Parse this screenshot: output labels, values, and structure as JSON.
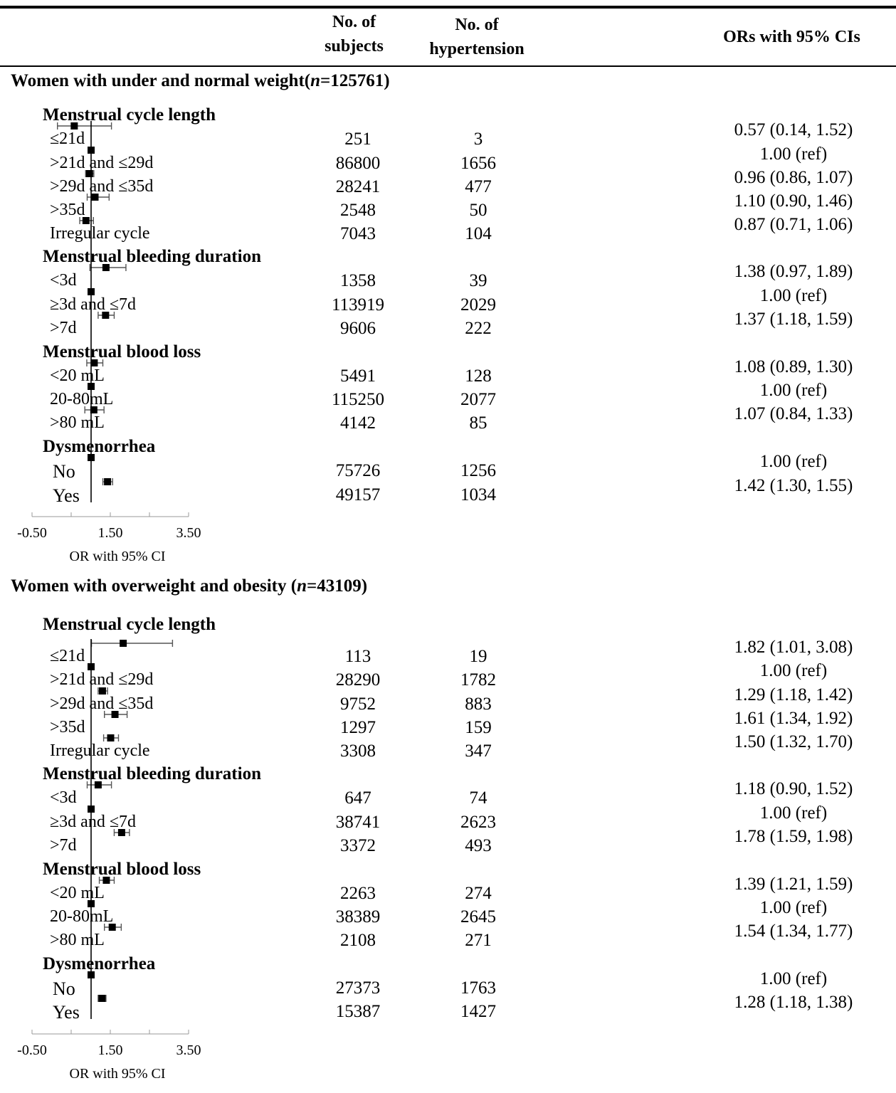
{
  "header": {
    "subjects_line1": "No. of",
    "subjects_line2": "subjects",
    "hyp_line1": "No. of",
    "hyp_line2": "hypertension",
    "ors": "ORs with 95% CIs"
  },
  "chart_data": [
    {
      "type": "forest",
      "title_prefix": "Women with under and normal weight(",
      "title_n": "n",
      "title_suffix": "=125761)",
      "xlabel": "OR with 95% CI",
      "xlim": [
        -0.5,
        3.5
      ],
      "ticks": [
        "-0.50",
        "1.50",
        "3.50"
      ],
      "reference_line": 1.0,
      "categories": [
        {
          "name": "Menstrual cycle length",
          "rows": [
            {
              "label": "≤21d",
              "subjects": "251",
              "cases": "3",
              "or": 0.57,
              "lo": 0.14,
              "hi": 1.52,
              "text": "0.57 (0.14, 1.52)"
            },
            {
              "label": ">21d and ≤29d",
              "subjects": "86800",
              "cases": "1656",
              "or": 1.0,
              "lo": 1.0,
              "hi": 1.0,
              "text": "1.00 (ref)"
            },
            {
              "label": ">29d and ≤35d",
              "subjects": "28241",
              "cases": "477",
              "or": 0.96,
              "lo": 0.86,
              "hi": 1.07,
              "text": "0.96 (0.86, 1.07)"
            },
            {
              "label": ">35d",
              "subjects": "2548",
              "cases": "50",
              "or": 1.1,
              "lo": 0.9,
              "hi": 1.46,
              "text": "1.10 (0.90, 1.46)"
            },
            {
              "label": "Irregular cycle",
              "subjects": "7043",
              "cases": "104",
              "or": 0.87,
              "lo": 0.71,
              "hi": 1.06,
              "text": "0.87 (0.71, 1.06)"
            }
          ]
        },
        {
          "name": "Menstrual bleeding duration",
          "rows": [
            {
              "label": "<3d",
              "subjects": "1358",
              "cases": "39",
              "or": 1.38,
              "lo": 0.97,
              "hi": 1.89,
              "text": "1.38 (0.97, 1.89)"
            },
            {
              "label": "≥3d and ≤7d",
              "subjects": "113919",
              "cases": "2029",
              "or": 1.0,
              "lo": 1.0,
              "hi": 1.0,
              "text": "1.00 (ref)"
            },
            {
              "label": ">7d",
              "subjects": "9606",
              "cases": "222",
              "or": 1.37,
              "lo": 1.18,
              "hi": 1.59,
              "text": "1.37 (1.18, 1.59)"
            }
          ]
        },
        {
          "name": "Menstrual blood loss",
          "rows": [
            {
              "label": "<20 mL",
              "subjects": "5491",
              "cases": "128",
              "or": 1.08,
              "lo": 0.89,
              "hi": 1.3,
              "text": "1.08 (0.89, 1.30)"
            },
            {
              "label": "20-80mL",
              "subjects": "115250",
              "cases": "2077",
              "or": 1.0,
              "lo": 1.0,
              "hi": 1.0,
              "text": "1.00 (ref)"
            },
            {
              "label": ">80 mL",
              "subjects": "4142",
              "cases": "85",
              "or": 1.07,
              "lo": 0.84,
              "hi": 1.33,
              "text": "1.07 (0.84, 1.33)"
            }
          ]
        },
        {
          "name": "Dysmenorrhea",
          "rows": [
            {
              "label": "No",
              "subjects": "75726",
              "cases": "1256",
              "or": 1.0,
              "lo": 1.0,
              "hi": 1.0,
              "text": "1.00 (ref)"
            },
            {
              "label": "Yes",
              "subjects": "49157",
              "cases": "1034",
              "or": 1.42,
              "lo": 1.3,
              "hi": 1.55,
              "text": "1.42 (1.30, 1.55)"
            }
          ]
        }
      ]
    },
    {
      "type": "forest",
      "title_prefix": "Women with overweight and obesity (",
      "title_n": "n",
      "title_suffix": "=43109)",
      "xlabel": "OR with 95% CI",
      "xlim": [
        -0.5,
        3.5
      ],
      "ticks": [
        "-0.50",
        "1.50",
        "3.50"
      ],
      "reference_line": 1.0,
      "categories": [
        {
          "name": "Menstrual cycle length",
          "rows": [
            {
              "label": "≤21d",
              "subjects": "113",
              "cases": "19",
              "or": 1.82,
              "lo": 1.01,
              "hi": 3.08,
              "text": "1.82 (1.01, 3.08)"
            },
            {
              "label": ">21d and ≤29d",
              "subjects": "28290",
              "cases": "1782",
              "or": 1.0,
              "lo": 1.0,
              "hi": 1.0,
              "text": "1.00 (ref)"
            },
            {
              "label": ">29d and ≤35d",
              "subjects": "9752",
              "cases": "883",
              "or": 1.29,
              "lo": 1.18,
              "hi": 1.42,
              "text": "1.29 (1.18, 1.42)"
            },
            {
              "label": ">35d",
              "subjects": "1297",
              "cases": "159",
              "or": 1.61,
              "lo": 1.34,
              "hi": 1.92,
              "text": "1.61 (1.34, 1.92)"
            },
            {
              "label": "Irregular cycle",
              "subjects": "3308",
              "cases": "347",
              "or": 1.5,
              "lo": 1.32,
              "hi": 1.7,
              "text": "1.50 (1.32, 1.70)"
            }
          ]
        },
        {
          "name": "Menstrual bleeding duration",
          "rows": [
            {
              "label": "<3d",
              "subjects": "647",
              "cases": "74",
              "or": 1.18,
              "lo": 0.9,
              "hi": 1.52,
              "text": "1.18 (0.90, 1.52)"
            },
            {
              "label": "≥3d and ≤7d",
              "subjects": "38741",
              "cases": "2623",
              "or": 1.0,
              "lo": 1.0,
              "hi": 1.0,
              "text": "1.00 (ref)"
            },
            {
              "label": ">7d",
              "subjects": "3372",
              "cases": "493",
              "or": 1.78,
              "lo": 1.59,
              "hi": 1.98,
              "text": "1.78 (1.59, 1.98)"
            }
          ]
        },
        {
          "name": "Menstrual blood loss",
          "rows": [
            {
              "label": "<20 mL",
              "subjects": "2263",
              "cases": "274",
              "or": 1.39,
              "lo": 1.21,
              "hi": 1.59,
              "text": "1.39 (1.21, 1.59)"
            },
            {
              "label": "20-80mL",
              "subjects": "38389",
              "cases": "2645",
              "or": 1.0,
              "lo": 1.0,
              "hi": 1.0,
              "text": "1.00 (ref)"
            },
            {
              "label": ">80 mL",
              "subjects": "2108",
              "cases": "271",
              "or": 1.54,
              "lo": 1.34,
              "hi": 1.77,
              "text": "1.54 (1.34, 1.77)"
            }
          ]
        },
        {
          "name": "Dysmenorrhea",
          "rows": [
            {
              "label": "No",
              "subjects": "27373",
              "cases": "1763",
              "or": 1.0,
              "lo": 1.0,
              "hi": 1.0,
              "text": "1.00 (ref)"
            },
            {
              "label": "Yes",
              "subjects": "15387",
              "cases": "1427",
              "or": 1.28,
              "lo": 1.18,
              "hi": 1.38,
              "text": "1.28 (1.18, 1.38)"
            }
          ]
        }
      ]
    }
  ]
}
